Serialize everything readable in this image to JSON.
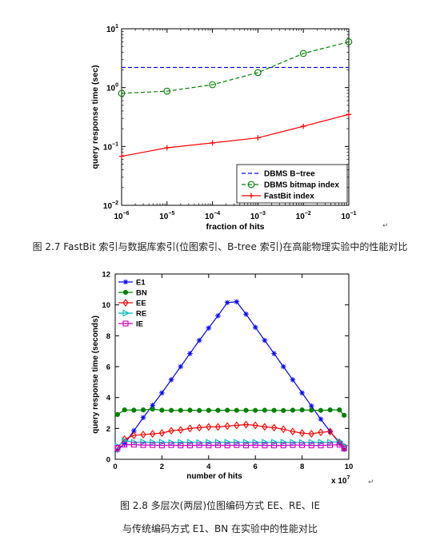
{
  "page": {
    "return_mark": "↵",
    "caption1": "图 2.7 FastBit 索引与数据库索引(位图索引、B-tree 索引)在高能物理实验中的性能对比",
    "caption2_line1": "图 2.8 多层次(两层)位图编码方式 EE、RE、IE",
    "caption2_line2": "与传统编码方式 E1、BN 在实验中的性能对比"
  },
  "chart_data": [
    {
      "type": "line",
      "xscale": "log",
      "yscale": "log",
      "xlabel": "fraction of hits",
      "ylabel": "query response time (sec)",
      "xlim": [
        1e-06,
        0.1
      ],
      "ylim": [
        0.01,
        10
      ],
      "x_ticks": [
        1e-06,
        1e-05,
        0.0001,
        0.001,
        0.01,
        0.1
      ],
      "x_tick_labels": [
        {
          "base": "10",
          "exp": "−6"
        },
        {
          "base": "10",
          "exp": "−5"
        },
        {
          "base": "10",
          "exp": "−4"
        },
        {
          "base": "10",
          "exp": "−3"
        },
        {
          "base": "10",
          "exp": "−2"
        },
        {
          "base": "10",
          "exp": "−1"
        }
      ],
      "y_ticks": [
        0.01,
        0.1,
        1,
        10
      ],
      "y_tick_labels": [
        {
          "base": "10",
          "exp": "−2"
        },
        {
          "base": "10",
          "exp": "−1"
        },
        {
          "base": "10",
          "exp": "0"
        },
        {
          "base": "10",
          "exp": "1"
        }
      ],
      "grid": false,
      "legend_position": "bottom-right",
      "series": [
        {
          "name": "DBMS B−tree",
          "color": "#0000ff",
          "dash": "dashed",
          "marker": "none",
          "x": [
            1e-06,
            0.1
          ],
          "y": [
            2.2,
            2.2
          ]
        },
        {
          "name": "DBMS bitmap index",
          "color": "#008000",
          "dash": "dashed",
          "marker": "circle",
          "x": [
            1e-06,
            1e-05,
            0.0001,
            0.001,
            0.01,
            0.1
          ],
          "y": [
            0.8,
            0.87,
            1.12,
            1.8,
            3.8,
            6.0
          ]
        },
        {
          "name": "FastBit index",
          "color": "#ff0000",
          "dash": "solid",
          "marker": "plus",
          "x": [
            1e-06,
            1e-05,
            0.0001,
            0.001,
            0.01,
            0.1
          ],
          "y": [
            0.068,
            0.095,
            0.115,
            0.14,
            0.22,
            0.35
          ]
        }
      ]
    },
    {
      "type": "line",
      "xscale": "linear",
      "yscale": "linear",
      "xlabel": "number of hits",
      "ylabel": "query response time (seconds)",
      "x_multiplier": {
        "base": "x 10",
        "exp": "7"
      },
      "xlim": [
        0,
        10
      ],
      "ylim": [
        0,
        12
      ],
      "x_ticks": [
        0,
        2,
        4,
        6,
        8,
        10
      ],
      "x_tick_labels": [
        "0",
        "2",
        "4",
        "6",
        "8",
        "10"
      ],
      "y_ticks": [
        0,
        2,
        4,
        6,
        8,
        10,
        12
      ],
      "y_tick_labels": [
        "0",
        "2",
        "4",
        "6",
        "8",
        "10",
        "12"
      ],
      "grid": false,
      "legend_position": "top-left",
      "x": [
        0.1,
        0.4,
        0.8,
        1.2,
        1.6,
        2.0,
        2.4,
        2.8,
        3.2,
        3.6,
        4.0,
        4.4,
        4.8,
        5.2,
        5.6,
        6.0,
        6.4,
        6.8,
        7.2,
        7.6,
        8.0,
        8.4,
        8.8,
        9.2,
        9.6,
        9.8
      ],
      "series": [
        {
          "name": "E1",
          "color": "#0000ff",
          "marker": "star",
          "y": [
            0.6,
            1.0,
            1.85,
            2.7,
            3.5,
            4.3,
            5.15,
            6.0,
            6.85,
            7.7,
            8.5,
            9.3,
            10.15,
            10.2,
            9.4,
            8.55,
            7.7,
            6.85,
            6.0,
            5.15,
            4.3,
            3.45,
            2.6,
            1.8,
            1.05,
            0.65
          ]
        },
        {
          "name": "BN",
          "color": "#008000",
          "marker": "filled-circle",
          "y": [
            2.9,
            3.2,
            3.18,
            3.2,
            3.25,
            3.18,
            3.17,
            3.17,
            3.18,
            3.16,
            3.17,
            3.17,
            3.18,
            3.17,
            3.17,
            3.17,
            3.18,
            3.17,
            3.16,
            3.18,
            3.2,
            3.18,
            3.17,
            3.2,
            3.2,
            2.85
          ]
        },
        {
          "name": "EE",
          "color": "#ff0000",
          "marker": "diamond",
          "y": [
            0.75,
            1.3,
            1.55,
            1.6,
            1.65,
            1.7,
            1.85,
            1.9,
            2.0,
            2.05,
            2.1,
            2.1,
            2.15,
            2.2,
            2.25,
            2.2,
            2.1,
            2.05,
            1.95,
            1.8,
            1.7,
            1.65,
            1.75,
            1.8,
            1.1,
            0.8
          ]
        },
        {
          "name": "RE",
          "color": "#00bbbb",
          "marker": "triangle-right",
          "y": [
            0.85,
            1.2,
            1.1,
            1.12,
            1.1,
            1.1,
            1.08,
            1.1,
            1.1,
            1.08,
            1.1,
            1.1,
            1.1,
            1.1,
            1.1,
            1.1,
            1.1,
            1.1,
            1.1,
            1.1,
            1.08,
            1.1,
            1.1,
            1.1,
            1.15,
            0.9
          ]
        },
        {
          "name": "IE",
          "color": "#cc00cc",
          "marker": "square",
          "y": [
            0.75,
            0.95,
            0.95,
            0.92,
            0.92,
            0.9,
            0.92,
            0.9,
            0.9,
            0.92,
            0.9,
            0.92,
            0.9,
            0.92,
            0.9,
            0.92,
            0.9,
            0.9,
            0.9,
            0.92,
            0.92,
            0.9,
            0.9,
            0.92,
            0.95,
            0.7
          ]
        }
      ]
    }
  ]
}
